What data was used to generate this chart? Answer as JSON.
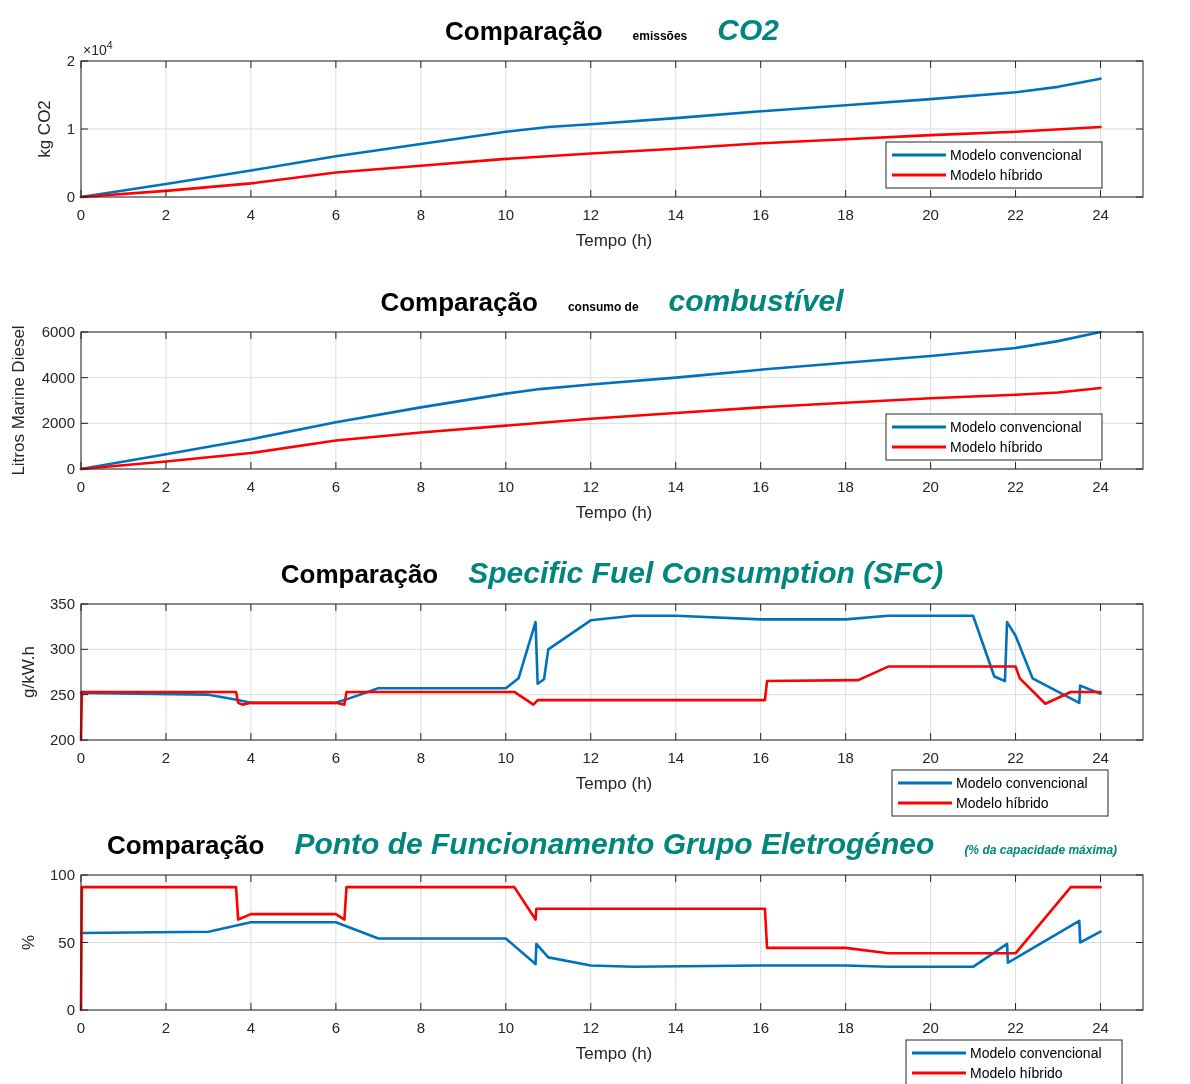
{
  "chart_data": [
    {
      "type": "line",
      "title": "Comparação",
      "subtitle": "CO2",
      "annotations": [
        "emissões",
        "×10$^{4}$"
      ],
      "xlabel": "Tempo (h)",
      "ylabel": "kg CO2",
      "xlim": [
        0,
        25
      ],
      "xticks": [
        0,
        2,
        4,
        6,
        8,
        10,
        12,
        14,
        16,
        18,
        20,
        22,
        24
      ],
      "ylim": [
        0,
        2
      ],
      "yticks": [
        0,
        1,
        2
      ],
      "grid": true,
      "legend": "bottom right",
      "marker": "none",
      "line_style": "solid",
      "series": [
        {
          "name": "Modelo convencional",
          "color": "#0072bd",
          "x": [
            0,
            2,
            4,
            6,
            8,
            10,
            11,
            12,
            14,
            16,
            18,
            20,
            22,
            23,
            24
          ],
          "values": [
            0,
            0.19,
            0.39,
            0.6,
            0.78,
            0.96,
            1.03,
            1.07,
            1.16,
            1.26,
            1.35,
            1.44,
            1.54,
            1.62,
            1.74
          ]
        },
        {
          "name": "Modelo híbrido",
          "color": "#ff0000",
          "x": [
            0,
            2,
            4,
            6,
            8,
            10,
            12,
            14,
            16,
            18,
            20,
            22,
            24
          ],
          "values": [
            0,
            0.09,
            0.2,
            0.36,
            0.46,
            0.56,
            0.64,
            0.71,
            0.79,
            0.85,
            0.91,
            0.96,
            1.03
          ]
        }
      ]
    },
    {
      "type": "line",
      "title": "Comparação",
      "subtitle": "combustível",
      "annotations": [
        "consumo de"
      ],
      "xlabel": "Tempo (h)",
      "ylabel": "Litros Marine Diesel",
      "xlim": [
        0,
        25
      ],
      "xticks": [
        0,
        2,
        4,
        6,
        8,
        10,
        12,
        14,
        16,
        18,
        20,
        22,
        24
      ],
      "ylim": [
        0,
        6000
      ],
      "yticks": [
        0,
        2000,
        4000,
        6000
      ],
      "grid": true,
      "legend": "bottom right",
      "marker": "none",
      "line_style": "solid",
      "series": [
        {
          "name": "Modelo convencional",
          "color": "#0072bd",
          "x": [
            0,
            2,
            4,
            6,
            8,
            10,
            10.8,
            12,
            14,
            16,
            18,
            20,
            22,
            23,
            24
          ],
          "values": [
            0,
            650,
            1300,
            2050,
            2700,
            3300,
            3500,
            3700,
            4000,
            4350,
            4650,
            4950,
            5300,
            5600,
            6000
          ]
        },
        {
          "name": "Modelo híbrido",
          "color": "#ff0000",
          "x": [
            0,
            2,
            4,
            6,
            8,
            10,
            12,
            14,
            16,
            18,
            20,
            22,
            23,
            24
          ],
          "values": [
            0,
            330,
            700,
            1250,
            1600,
            1900,
            2200,
            2450,
            2700,
            2900,
            3100,
            3250,
            3350,
            3550
          ]
        }
      ]
    },
    {
      "type": "line",
      "title": "Comparação",
      "subtitle": "Specific Fuel Consumption (SFC)",
      "xlabel": "Tempo (h)",
      "ylabel": "g/kW.h",
      "xlim": [
        0,
        25
      ],
      "xticks": [
        0,
        2,
        4,
        6,
        8,
        10,
        12,
        14,
        16,
        18,
        20,
        22,
        24
      ],
      "ylim": [
        200,
        350
      ],
      "yticks": [
        200,
        250,
        300,
        350
      ],
      "grid": true,
      "legend": "bottom right",
      "marker": "none",
      "line_style": "solid",
      "series": [
        {
          "name": "Modelo convencional",
          "color": "#0072bd",
          "x": [
            0,
            3,
            3.6,
            4,
            6,
            6.2,
            7,
            10,
            10.3,
            10.7,
            10.75,
            10.9,
            11,
            12,
            13,
            14,
            16,
            18,
            19,
            21,
            21.5,
            21.75,
            21.8,
            22,
            22.4,
            23.5,
            23.52,
            24
          ],
          "values": [
            252,
            250,
            245,
            241,
            241,
            244,
            257,
            257,
            268,
            330,
            262,
            267,
            300,
            332,
            337,
            337,
            333,
            333,
            337,
            337,
            270,
            265,
            330,
            315,
            268,
            241,
            260,
            251
          ]
        },
        {
          "name": "Modelo híbrido",
          "color": "#ff0000",
          "x": [
            0,
            0.02,
            3.65,
            3.7,
            3.8,
            4,
            6,
            6.2,
            6.25,
            10.2,
            10.65,
            10.75,
            16.1,
            16.15,
            18.3,
            19,
            22,
            22.1,
            22.7,
            23.3,
            24
          ],
          "values": [
            200,
            253,
            253,
            241,
            239,
            241,
            241,
            239,
            253,
            253,
            239,
            244,
            244,
            265,
            266,
            281,
            281,
            268,
            240,
            253,
            253
          ]
        }
      ]
    },
    {
      "type": "line",
      "title": "Comparação",
      "subtitle": "Ponto de Funcionamento Grupo Eletrogéneo",
      "annotations": [
        "(% da capacidade máxima)"
      ],
      "xlabel": "Tempo (h)",
      "ylabel": "%",
      "xlim": [
        0,
        25
      ],
      "xticks": [
        0,
        2,
        4,
        6,
        8,
        10,
        12,
        14,
        16,
        18,
        20,
        22,
        24
      ],
      "ylim": [
        0,
        100
      ],
      "yticks": [
        0,
        50,
        100
      ],
      "grid": true,
      "legend": "bottom right",
      "marker": "none",
      "line_style": "solid",
      "series": [
        {
          "name": "Modelo convencional",
          "color": "#0072bd",
          "x": [
            0,
            3,
            4,
            6,
            7,
            10,
            10.7,
            10.72,
            11,
            12,
            13,
            16,
            18,
            19,
            21,
            21.8,
            21.82,
            23.5,
            23.52,
            24
          ],
          "values": [
            57,
            58,
            65,
            65,
            53,
            53,
            34,
            49,
            39,
            33,
            32,
            33,
            33,
            32,
            32,
            49,
            35,
            66,
            50,
            58
          ]
        },
        {
          "name": "Modelo híbrido",
          "color": "#ff0000",
          "x": [
            0,
            0.02,
            3.65,
            3.7,
            4,
            6,
            6.2,
            6.25,
            10.2,
            10.7,
            10.72,
            16.1,
            16.15,
            18,
            19,
            22,
            23.3,
            24
          ],
          "values": [
            0,
            91,
            91,
            67,
            71,
            71,
            67,
            91,
            91,
            67,
            75,
            75,
            46,
            46,
            42,
            42,
            91,
            91
          ]
        }
      ]
    }
  ]
}
